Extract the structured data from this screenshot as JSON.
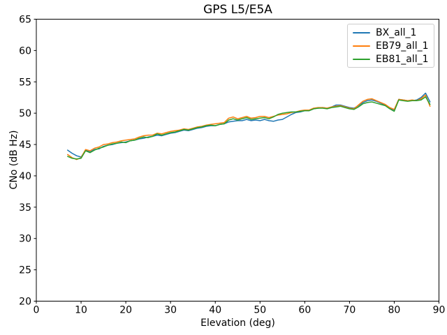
{
  "chart_data": {
    "type": "line",
    "title": "GPS L5/E5A",
    "xlabel": "Elevation (deg)",
    "ylabel": "CNo (dB Hz)",
    "xlim": [
      0,
      90
    ],
    "ylim": [
      20,
      65
    ],
    "xticks": [
      0,
      10,
      20,
      30,
      40,
      50,
      60,
      70,
      80,
      90
    ],
    "yticks": [
      20,
      25,
      30,
      35,
      40,
      45,
      50,
      55,
      60,
      65
    ],
    "grid": false,
    "legend_position": "upper right",
    "x": [
      7,
      8,
      9,
      10,
      11,
      12,
      13,
      14,
      15,
      16,
      17,
      18,
      19,
      20,
      21,
      22,
      23,
      24,
      25,
      26,
      27,
      28,
      29,
      30,
      31,
      32,
      33,
      34,
      35,
      36,
      37,
      38,
      39,
      40,
      41,
      42,
      43,
      44,
      45,
      46,
      47,
      48,
      49,
      50,
      51,
      52,
      53,
      54,
      55,
      56,
      57,
      58,
      59,
      60,
      61,
      62,
      63,
      64,
      65,
      66,
      67,
      68,
      69,
      70,
      71,
      72,
      73,
      74,
      75,
      76,
      77,
      78,
      79,
      80,
      81,
      82,
      83,
      84,
      85,
      86,
      87,
      88
    ],
    "series": [
      {
        "name": "BX_all_1",
        "color": "#1f77b4",
        "values": [
          44.1,
          43.6,
          43.2,
          43.0,
          44.1,
          43.8,
          44.2,
          44.3,
          44.7,
          44.9,
          45.0,
          45.2,
          45.3,
          45.4,
          45.6,
          45.7,
          45.9,
          46.0,
          46.2,
          46.3,
          46.5,
          46.4,
          46.6,
          46.8,
          46.9,
          47.1,
          47.3,
          47.2,
          47.4,
          47.6,
          47.7,
          47.9,
          48.0,
          48.0,
          48.2,
          48.3,
          48.6,
          48.7,
          48.8,
          48.8,
          49.0,
          48.8,
          48.9,
          48.8,
          49.0,
          48.8,
          48.7,
          48.9,
          49.0,
          49.4,
          49.8,
          50.1,
          50.2,
          50.4,
          50.4,
          50.7,
          50.8,
          50.9,
          50.8,
          51.0,
          51.3,
          51.3,
          51.1,
          50.9,
          50.8,
          51.2,
          51.7,
          52.0,
          52.1,
          51.9,
          51.6,
          51.3,
          50.8,
          50.5,
          52.2,
          52.1,
          52.0,
          52.0,
          52.1,
          52.5,
          53.2,
          51.8
        ]
      },
      {
        "name": "EB79_all_1",
        "color": "#ff7f0e",
        "values": [
          43.4,
          42.9,
          42.6,
          42.9,
          44.2,
          44.0,
          44.4,
          44.6,
          45.0,
          45.1,
          45.3,
          45.4,
          45.6,
          45.7,
          45.8,
          45.9,
          46.2,
          46.4,
          46.5,
          46.5,
          46.8,
          46.7,
          46.9,
          47.1,
          47.2,
          47.3,
          47.5,
          47.4,
          47.6,
          47.8,
          47.9,
          48.1,
          48.2,
          48.3,
          48.4,
          48.5,
          49.2,
          49.4,
          49.1,
          49.3,
          49.5,
          49.2,
          49.3,
          49.5,
          49.5,
          49.3,
          49.5,
          49.7,
          49.8,
          49.9,
          50.1,
          50.2,
          50.4,
          50.5,
          50.5,
          50.8,
          50.9,
          50.9,
          50.8,
          51.0,
          51.1,
          51.2,
          51.0,
          50.8,
          50.7,
          51.3,
          51.9,
          52.2,
          52.3,
          52.0,
          51.7,
          51.4,
          50.9,
          50.6,
          52.2,
          52.1,
          52.0,
          52.1,
          52.0,
          52.3,
          52.9,
          51.1
        ]
      },
      {
        "name": "EB81_all_1",
        "color": "#2ca02c",
        "values": [
          43.1,
          42.8,
          42.7,
          42.8,
          44.0,
          43.7,
          44.1,
          44.4,
          44.6,
          44.9,
          45.1,
          45.2,
          45.4,
          45.3,
          45.6,
          45.7,
          46.0,
          46.2,
          46.1,
          46.3,
          46.7,
          46.5,
          46.7,
          46.9,
          47.0,
          47.2,
          47.4,
          47.3,
          47.5,
          47.7,
          47.8,
          48.0,
          48.1,
          48.0,
          48.2,
          48.3,
          48.9,
          49.1,
          48.9,
          49.1,
          49.3,
          49.0,
          49.1,
          49.2,
          49.3,
          49.1,
          49.4,
          49.8,
          50.0,
          50.1,
          50.2,
          50.2,
          50.3,
          50.4,
          50.4,
          50.7,
          50.8,
          50.8,
          50.7,
          50.9,
          51.0,
          51.1,
          50.9,
          50.7,
          50.6,
          51.0,
          51.5,
          51.7,
          51.8,
          51.6,
          51.4,
          51.2,
          50.7,
          50.3,
          52.1,
          52.0,
          51.9,
          52.0,
          52.0,
          52.1,
          52.6,
          51.4
        ]
      }
    ]
  }
}
